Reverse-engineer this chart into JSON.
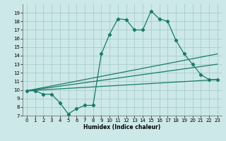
{
  "xlabel": "Humidex (Indice chaleur)",
  "xlim": [
    -0.5,
    23.5
  ],
  "ylim": [
    7,
    20
  ],
  "yticks": [
    7,
    8,
    9,
    10,
    11,
    12,
    13,
    14,
    15,
    16,
    17,
    18,
    19
  ],
  "xticks": [
    0,
    1,
    2,
    3,
    4,
    5,
    6,
    7,
    8,
    9,
    10,
    11,
    12,
    13,
    14,
    15,
    16,
    17,
    18,
    19,
    20,
    21,
    22,
    23
  ],
  "background_color": "#cce8e8",
  "line_color": "#1a7a6a",
  "grid_color": "#aacccc",
  "lines": [
    {
      "x": [
        0,
        1,
        2,
        3,
        4,
        5,
        6,
        7,
        8,
        9,
        10,
        11,
        12,
        13,
        14,
        15,
        16,
        17,
        18,
        19,
        20,
        21,
        22,
        23
      ],
      "y": [
        9.9,
        9.9,
        9.5,
        9.5,
        8.5,
        7.2,
        7.8,
        8.2,
        8.2,
        14.2,
        16.5,
        18.3,
        18.2,
        17.0,
        17.0,
        19.2,
        18.3,
        18.0,
        15.8,
        14.2,
        13.0,
        11.8,
        11.2,
        11.2
      ],
      "marker": true
    },
    {
      "x": [
        0,
        23
      ],
      "y": [
        9.9,
        11.2
      ],
      "marker": false
    },
    {
      "x": [
        0,
        23
      ],
      "y": [
        9.9,
        13.0
      ],
      "marker": false
    },
    {
      "x": [
        0,
        23
      ],
      "y": [
        9.9,
        14.2
      ],
      "marker": false
    }
  ]
}
